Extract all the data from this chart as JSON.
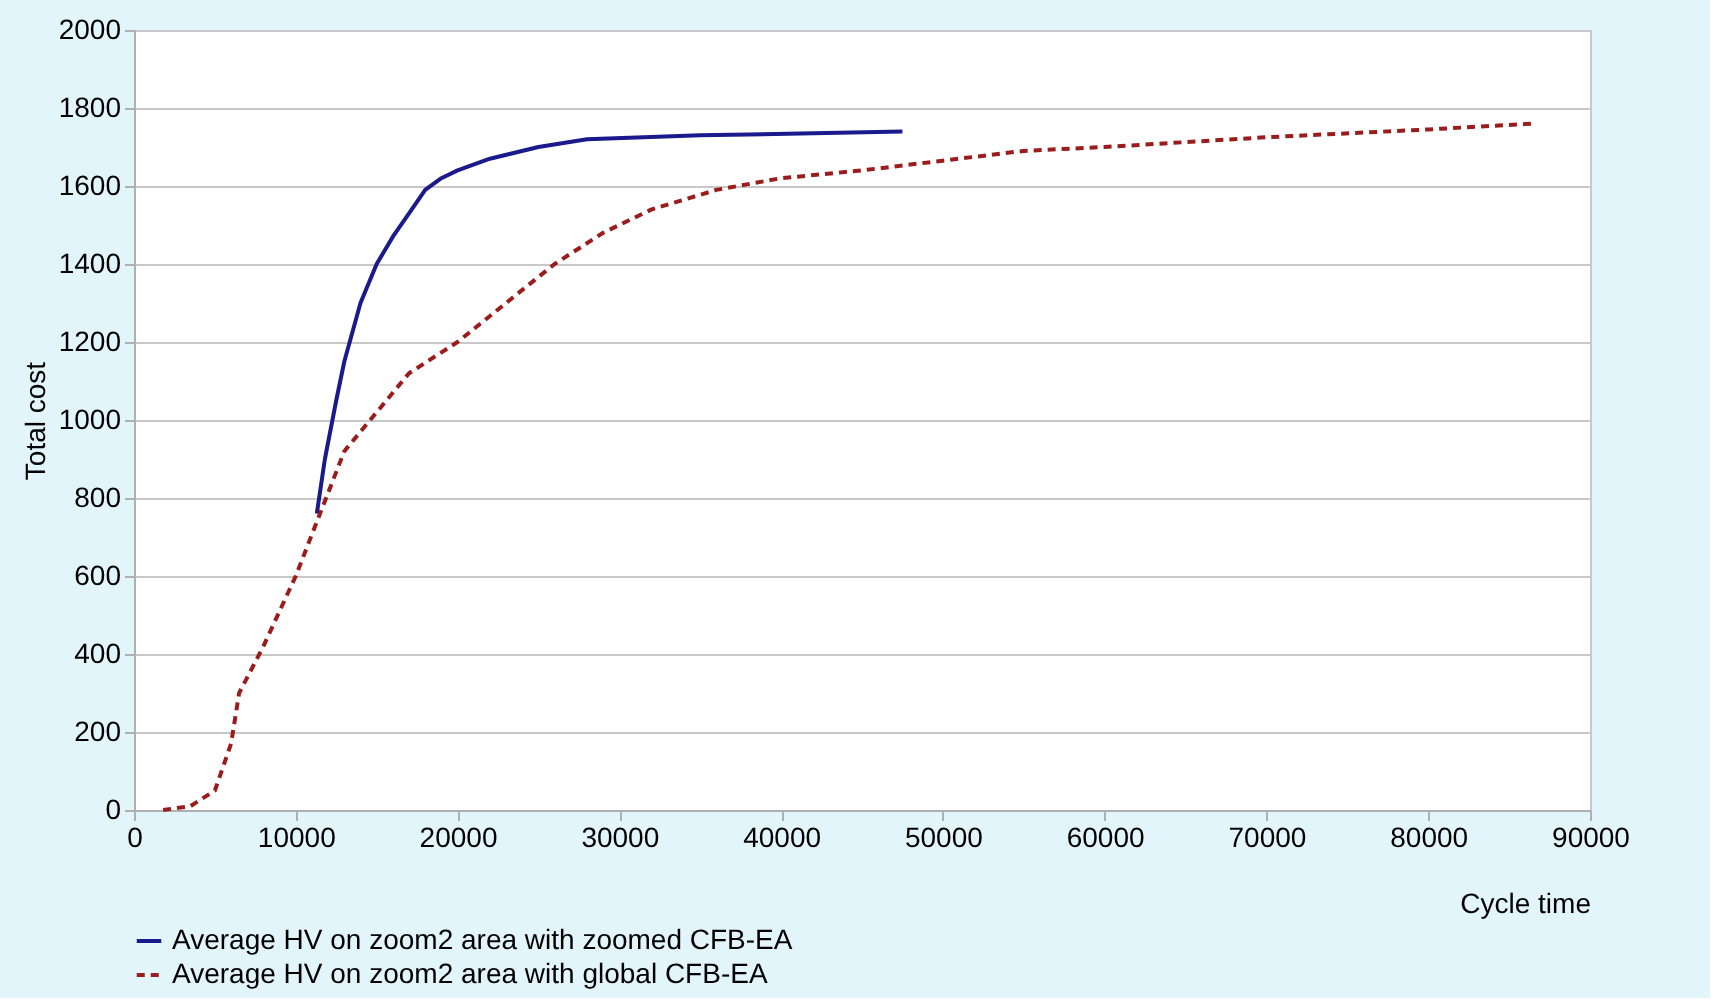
{
  "chart_data": {
    "type": "line",
    "xlabel": "Cycle time",
    "ylabel": "Total cost",
    "xlim": [
      0,
      90000
    ],
    "xticks": [
      0,
      10000,
      20000,
      30000,
      40000,
      50000,
      60000,
      70000,
      80000,
      90000
    ],
    "ylim": [
      0,
      2000
    ],
    "yticks": [
      0,
      200,
      400,
      600,
      800,
      1000,
      1200,
      1400,
      1600,
      1800,
      2000
    ],
    "grid": "y",
    "legend": "bottom",
    "marker": "none",
    "series": [
      {
        "name": "Average HV on zoom2 area with zoomed CFB-EA",
        "color": "#1a1a8c",
        "line_style": "solid",
        "x": [
          11300,
          11800,
          12500,
          13000,
          14000,
          15000,
          16000,
          17000,
          18000,
          19000,
          20000,
          22000,
          25000,
          28000,
          35000,
          42000,
          47500
        ],
        "values": [
          760,
          900,
          1050,
          1150,
          1300,
          1400,
          1470,
          1530,
          1590,
          1620,
          1640,
          1670,
          1700,
          1720,
          1730,
          1735,
          1740
        ]
      },
      {
        "name": "Average HV on zoom2 area with global CFB-EA",
        "color": "#9b1c1c",
        "line_style": "dashed",
        "x": [
          1800,
          3500,
          5000,
          6000,
          6500,
          8000,
          10000,
          11500,
          13000,
          15000,
          17000,
          20000,
          23000,
          26000,
          29000,
          32000,
          36000,
          40000,
          45000,
          50000,
          55000,
          60000,
          70000,
          80000,
          86500
        ],
        "values": [
          0,
          10,
          50,
          170,
          300,
          420,
          600,
          760,
          920,
          1020,
          1120,
          1200,
          1300,
          1400,
          1480,
          1540,
          1590,
          1620,
          1640,
          1665,
          1690,
          1700,
          1725,
          1745,
          1760
        ]
      }
    ]
  }
}
